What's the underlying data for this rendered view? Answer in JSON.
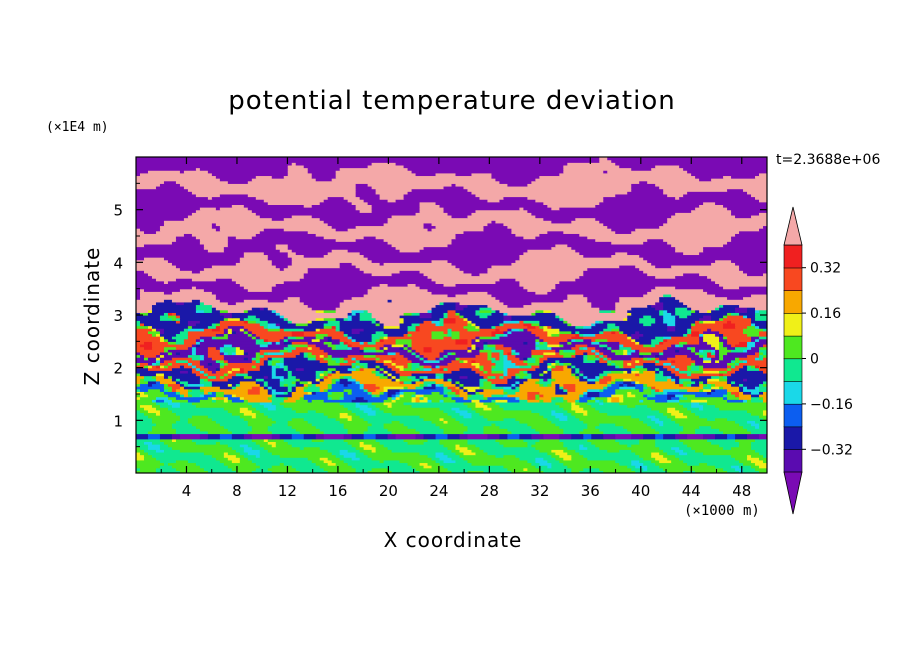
{
  "chart_data": {
    "type": "heatmap",
    "title": "potential temperature deviation",
    "xlabel": "X coordinate",
    "ylabel": "Z coordinate",
    "x_unit": "(×1000 m)",
    "y_unit": "(×1E4 m)",
    "time_label": "t=2.3688e+06",
    "xlim": [
      0,
      50
    ],
    "ylim": [
      0,
      6
    ],
    "x_ticks": [
      "4",
      "8",
      "12",
      "16",
      "20",
      "24",
      "28",
      "32",
      "36",
      "40",
      "44",
      "48"
    ],
    "y_ticks": [
      "1",
      "2",
      "3",
      "4",
      "5"
    ],
    "colorbar": {
      "levels": [
        -0.4,
        -0.32,
        -0.24,
        -0.16,
        -0.08,
        0,
        0.08,
        0.16,
        0.24,
        0.32,
        0.4
      ],
      "tick_labels": [
        "0.32",
        "0.16",
        "0",
        "−0.16",
        "−0.32"
      ],
      "tick_values": [
        0.32,
        0.16,
        0,
        -0.16,
        -0.32
      ],
      "extend": "both"
    },
    "palette": {
      "over": "#f4a8a8",
      "under": "#7a0ab4",
      "bins": [
        "#5a0bb0",
        "#1a18a8",
        "#0c5ef0",
        "#1ad8e8",
        "#10e890",
        "#4ee820",
        "#f0f018",
        "#f8a800",
        "#f84820",
        "#f02020"
      ]
    },
    "structure": {
      "bands_z": [
        {
          "z": [
            5.7,
            6.0
          ],
          "value": -0.45
        },
        {
          "z": [
            5.25,
            5.7
          ],
          "value": 0.45
        },
        {
          "z": [
            4.85,
            5.25
          ],
          "value": -0.45
        },
        {
          "z": [
            4.45,
            4.85
          ],
          "value": 0.45
        },
        {
          "z": [
            4.05,
            4.45
          ],
          "value": -0.45
        },
        {
          "z": [
            3.7,
            4.05
          ],
          "value": 0.45
        },
        {
          "z": [
            3.35,
            3.7
          ],
          "value": -0.45
        },
        {
          "z": [
            3.05,
            3.35
          ],
          "value": 0.45
        },
        {
          "z": [
            2.75,
            3.05
          ],
          "value": -0.3
        },
        {
          "z": [
            2.5,
            2.75
          ],
          "value": 0.3
        },
        {
          "z": [
            2.25,
            2.5
          ],
          "value": -0.35
        },
        {
          "z": [
            2.0,
            2.25
          ],
          "value": 0.25
        },
        {
          "z": [
            1.75,
            2.0
          ],
          "value": -0.25
        },
        {
          "z": [
            1.5,
            1.75
          ],
          "value": 0.2
        },
        {
          "z": [
            1.35,
            1.5
          ],
          "value": -0.2
        },
        {
          "z": [
            0.0,
            1.35
          ],
          "value": 0.0
        }
      ]
    }
  }
}
